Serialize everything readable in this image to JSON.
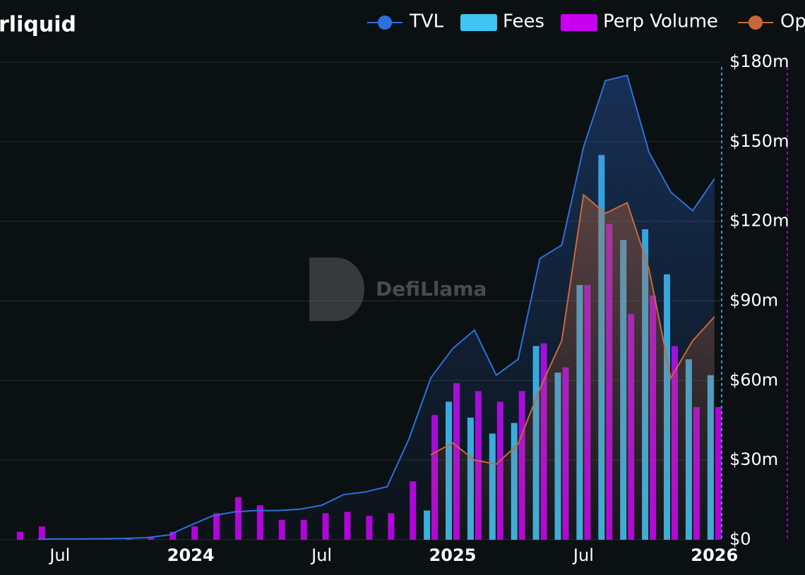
{
  "chart_data": {
    "type": "bar",
    "title": "rliquid",
    "watermark": "DefiLlama",
    "categories": [
      null,
      null,
      "Jul",
      null,
      null,
      null,
      null,
      null,
      "2024",
      null,
      null,
      null,
      null,
      null,
      "Jul",
      null,
      null,
      null,
      null,
      null,
      "2025",
      null,
      null,
      null,
      null,
      null,
      "Jul",
      null,
      null,
      null,
      null,
      null,
      "2026"
    ],
    "series": [
      {
        "name": "TVL",
        "kind": "line",
        "area": true,
        "color": "#2f6fdc",
        "values": [
          null,
          0.2,
          0.3,
          0.3,
          0.4,
          0.5,
          0.8,
          1.8,
          5.5,
          9,
          10.5,
          11,
          11,
          11.5,
          13,
          17,
          18,
          20,
          38,
          61,
          72,
          79,
          62,
          68,
          106,
          111,
          148,
          173,
          175,
          146,
          131,
          124,
          136
        ]
      },
      {
        "name": "Fees",
        "kind": "bar",
        "color": "#3fc4f4",
        "values": [
          null,
          null,
          null,
          null,
          null,
          null,
          null,
          null,
          null,
          null,
          null,
          null,
          null,
          null,
          null,
          null,
          null,
          null,
          null,
          11,
          52,
          46,
          40,
          44,
          73,
          63,
          96,
          145,
          113,
          117,
          100,
          68,
          62
        ]
      },
      {
        "name": "Perp Volume",
        "kind": "bar",
        "color": "#c800f0",
        "values": [
          3,
          5,
          0.5,
          0.3,
          0.3,
          0.5,
          1,
          3,
          5,
          10,
          16,
          13,
          7.5,
          7.5,
          10,
          10.5,
          9,
          10,
          22,
          47,
          59,
          56,
          52,
          56,
          74,
          65,
          96,
          119,
          85,
          92,
          73,
          50,
          50
        ]
      },
      {
        "name": "Op",
        "kind": "line",
        "area": true,
        "color": "#c8683a",
        "values": [
          null,
          null,
          null,
          null,
          null,
          null,
          null,
          null,
          null,
          null,
          null,
          null,
          null,
          null,
          null,
          null,
          null,
          null,
          null,
          32,
          36.5,
          30,
          28.5,
          36,
          57,
          75,
          130,
          123,
          127,
          102,
          61,
          75,
          84
        ]
      }
    ],
    "ylim": [
      0,
      180
    ],
    "yticks": [
      {
        "value": 0,
        "label": "$0"
      },
      {
        "value": 30,
        "label": "$30m"
      },
      {
        "value": 60,
        "label": "$60m"
      },
      {
        "value": 90,
        "label": "$90m"
      },
      {
        "value": 120,
        "label": "$120m"
      },
      {
        "value": 150,
        "label": "$150m"
      },
      {
        "value": 180,
        "label": "$180m"
      }
    ],
    "grid": true
  }
}
